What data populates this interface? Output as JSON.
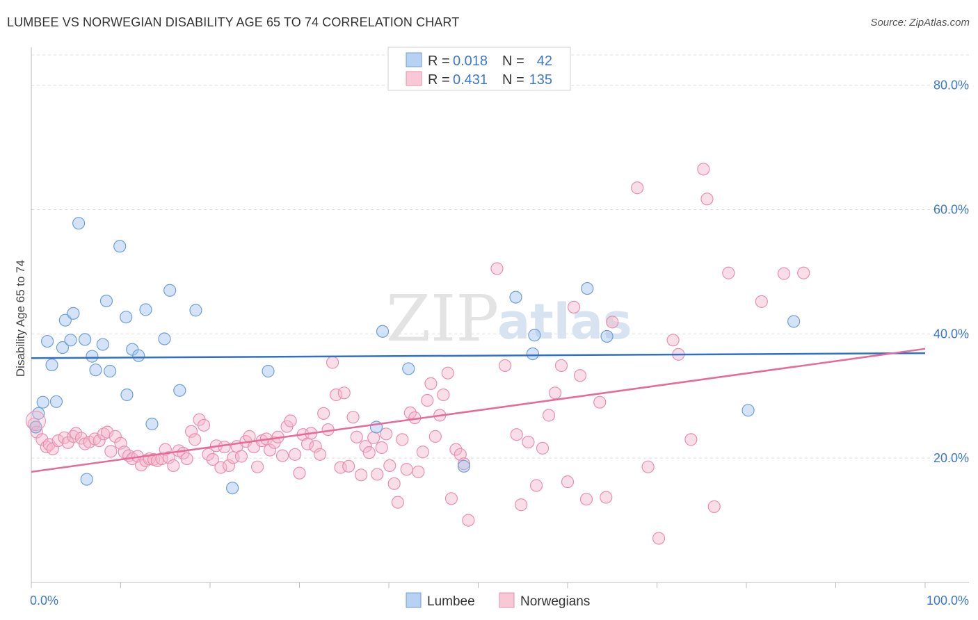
{
  "title": "LUMBEE VS NORWEGIAN DISABILITY AGE 65 TO 74 CORRELATION CHART",
  "source": "Source: ZipAtlas.com",
  "watermark": {
    "zip": "ZIP",
    "atlas": "atlas"
  },
  "chart_data": {
    "type": "scatter",
    "xlabel": "",
    "ylabel": "Disability Age 65 to 74",
    "xlim": [
      0,
      100
    ],
    "ylim": [
      0,
      85
    ],
    "x_ticks": [
      "0.0%",
      "100.0%"
    ],
    "y_ticks": [
      {
        "value": 20,
        "label": "20.0%"
      },
      {
        "value": 40,
        "label": "40.0%"
      },
      {
        "value": 60,
        "label": "60.0%"
      },
      {
        "value": 80,
        "label": "80.0%"
      }
    ],
    "grid": true,
    "legend": {
      "placement": "top-center",
      "rows": [
        {
          "r_label": "R =",
          "r_value": "0.018",
          "n_label": "N =",
          "n_value": "42"
        },
        {
          "r_label": "R =",
          "r_value": "0.431",
          "n_label": "N =",
          "n_value": "135"
        }
      ]
    },
    "series": [
      {
        "name": "Lumbee",
        "color": "#9fc2ee",
        "edge": "#6d9fd8",
        "trend_color": "#2f6fcc",
        "trend": [
          {
            "x": 0,
            "y": 36.1
          },
          {
            "x": 100,
            "y": 36.9
          }
        ],
        "points": [
          {
            "x": 0.5,
            "y": 25.0
          },
          {
            "x": 0.8,
            "y": 27.2
          },
          {
            "x": 1.3,
            "y": 29.0
          },
          {
            "x": 1.8,
            "y": 38.8
          },
          {
            "x": 2.3,
            "y": 35.0
          },
          {
            "x": 2.8,
            "y": 29.1
          },
          {
            "x": 3.5,
            "y": 37.8
          },
          {
            "x": 3.8,
            "y": 42.2
          },
          {
            "x": 4.4,
            "y": 39.0
          },
          {
            "x": 4.7,
            "y": 43.3
          },
          {
            "x": 5.3,
            "y": 57.8
          },
          {
            "x": 6.0,
            "y": 39.1
          },
          {
            "x": 6.2,
            "y": 16.6
          },
          {
            "x": 6.8,
            "y": 36.4
          },
          {
            "x": 7.2,
            "y": 34.2
          },
          {
            "x": 8.0,
            "y": 38.3
          },
          {
            "x": 8.4,
            "y": 45.3
          },
          {
            "x": 8.8,
            "y": 34.0
          },
          {
            "x": 9.9,
            "y": 54.1
          },
          {
            "x": 10.6,
            "y": 42.7
          },
          {
            "x": 10.7,
            "y": 30.2
          },
          {
            "x": 11.3,
            "y": 37.5
          },
          {
            "x": 12.0,
            "y": 36.5
          },
          {
            "x": 12.8,
            "y": 43.9
          },
          {
            "x": 13.5,
            "y": 25.5
          },
          {
            "x": 14.9,
            "y": 39.2
          },
          {
            "x": 15.5,
            "y": 47.0
          },
          {
            "x": 16.6,
            "y": 30.9
          },
          {
            "x": 18.4,
            "y": 43.8
          },
          {
            "x": 22.5,
            "y": 15.2
          },
          {
            "x": 26.5,
            "y": 34.0
          },
          {
            "x": 38.6,
            "y": 25.0
          },
          {
            "x": 39.3,
            "y": 40.4
          },
          {
            "x": 42.2,
            "y": 34.4
          },
          {
            "x": 48.4,
            "y": 18.7
          },
          {
            "x": 54.2,
            "y": 45.9
          },
          {
            "x": 56.3,
            "y": 39.8
          },
          {
            "x": 56.1,
            "y": 36.8
          },
          {
            "x": 62.2,
            "y": 47.3
          },
          {
            "x": 64.4,
            "y": 39.6
          },
          {
            "x": 80.2,
            "y": 27.7
          },
          {
            "x": 85.3,
            "y": 42.0
          }
        ]
      },
      {
        "name": "Norwegians",
        "color": "#f5b5c9",
        "edge": "#e98fad",
        "trend_color": "#e56b98",
        "trend": [
          {
            "x": 0,
            "y": 17.8
          },
          {
            "x": 100,
            "y": 37.6
          }
        ],
        "points": [
          {
            "x": 0.3,
            "y": 25.5
          },
          {
            "x": 0.6,
            "y": 24.2
          },
          {
            "x": 1.2,
            "y": 23.0
          },
          {
            "x": 1.7,
            "y": 21.8
          },
          {
            "x": 2.0,
            "y": 22.2
          },
          {
            "x": 2.4,
            "y": 21.5
          },
          {
            "x": 3.0,
            "y": 22.8
          },
          {
            "x": 3.7,
            "y": 23.3
          },
          {
            "x": 4.1,
            "y": 22.5
          },
          {
            "x": 4.7,
            "y": 23.5
          },
          {
            "x": 5.0,
            "y": 24.0
          },
          {
            "x": 5.6,
            "y": 23.2
          },
          {
            "x": 6.0,
            "y": 22.3
          },
          {
            "x": 6.5,
            "y": 22.6
          },
          {
            "x": 7.1,
            "y": 23.1
          },
          {
            "x": 7.6,
            "y": 22.8
          },
          {
            "x": 8.1,
            "y": 23.9
          },
          {
            "x": 8.5,
            "y": 24.2
          },
          {
            "x": 8.9,
            "y": 21.1
          },
          {
            "x": 9.4,
            "y": 23.5
          },
          {
            "x": 10.0,
            "y": 22.4
          },
          {
            "x": 10.4,
            "y": 21.0
          },
          {
            "x": 10.9,
            "y": 20.4
          },
          {
            "x": 11.3,
            "y": 19.9
          },
          {
            "x": 11.9,
            "y": 20.3
          },
          {
            "x": 12.3,
            "y": 18.9
          },
          {
            "x": 12.8,
            "y": 19.6
          },
          {
            "x": 13.2,
            "y": 19.9
          },
          {
            "x": 13.7,
            "y": 19.8
          },
          {
            "x": 14.1,
            "y": 19.6
          },
          {
            "x": 14.6,
            "y": 19.9
          },
          {
            "x": 15.0,
            "y": 21.4
          },
          {
            "x": 15.4,
            "y": 20.1
          },
          {
            "x": 15.9,
            "y": 18.8
          },
          {
            "x": 16.5,
            "y": 21.2
          },
          {
            "x": 17.0,
            "y": 20.8
          },
          {
            "x": 17.4,
            "y": 19.9
          },
          {
            "x": 17.9,
            "y": 24.3
          },
          {
            "x": 18.3,
            "y": 23.0
          },
          {
            "x": 18.8,
            "y": 26.2
          },
          {
            "x": 19.3,
            "y": 25.3
          },
          {
            "x": 19.8,
            "y": 20.6
          },
          {
            "x": 20.3,
            "y": 19.8
          },
          {
            "x": 20.7,
            "y": 22.0
          },
          {
            "x": 21.2,
            "y": 18.5
          },
          {
            "x": 21.6,
            "y": 21.8
          },
          {
            "x": 22.1,
            "y": 18.8
          },
          {
            "x": 22.6,
            "y": 20.1
          },
          {
            "x": 23.0,
            "y": 21.9
          },
          {
            "x": 23.5,
            "y": 20.3
          },
          {
            "x": 24.0,
            "y": 22.7
          },
          {
            "x": 24.4,
            "y": 23.5
          },
          {
            "x": 24.9,
            "y": 21.8
          },
          {
            "x": 25.3,
            "y": 18.6
          },
          {
            "x": 25.8,
            "y": 22.8
          },
          {
            "x": 26.3,
            "y": 23.1
          },
          {
            "x": 26.7,
            "y": 21.3
          },
          {
            "x": 27.2,
            "y": 22.5
          },
          {
            "x": 27.6,
            "y": 23.4
          },
          {
            "x": 28.1,
            "y": 20.4
          },
          {
            "x": 28.6,
            "y": 25.1
          },
          {
            "x": 29.0,
            "y": 26.0
          },
          {
            "x": 29.5,
            "y": 20.6
          },
          {
            "x": 30.0,
            "y": 17.6
          },
          {
            "x": 30.4,
            "y": 23.8
          },
          {
            "x": 30.9,
            "y": 22.3
          },
          {
            "x": 31.3,
            "y": 24.0
          },
          {
            "x": 31.8,
            "y": 21.9
          },
          {
            "x": 32.3,
            "y": 20.6
          },
          {
            "x": 32.7,
            "y": 27.2
          },
          {
            "x": 33.2,
            "y": 24.6
          },
          {
            "x": 33.7,
            "y": 35.4
          },
          {
            "x": 34.1,
            "y": 30.2
          },
          {
            "x": 34.6,
            "y": 18.5
          },
          {
            "x": 35.0,
            "y": 30.5
          },
          {
            "x": 35.5,
            "y": 18.7
          },
          {
            "x": 36.0,
            "y": 26.6
          },
          {
            "x": 36.4,
            "y": 23.4
          },
          {
            "x": 36.9,
            "y": 17.3
          },
          {
            "x": 37.4,
            "y": 21.9
          },
          {
            "x": 37.8,
            "y": 20.9
          },
          {
            "x": 38.3,
            "y": 23.3
          },
          {
            "x": 38.7,
            "y": 17.4
          },
          {
            "x": 39.2,
            "y": 21.7
          },
          {
            "x": 39.7,
            "y": 23.9
          },
          {
            "x": 40.1,
            "y": 18.8
          },
          {
            "x": 40.6,
            "y": 15.9
          },
          {
            "x": 41.0,
            "y": 12.9
          },
          {
            "x": 41.5,
            "y": 23.0
          },
          {
            "x": 42.0,
            "y": 18.2
          },
          {
            "x": 42.4,
            "y": 27.3
          },
          {
            "x": 42.9,
            "y": 26.5
          },
          {
            "x": 43.3,
            "y": 17.8
          },
          {
            "x": 43.8,
            "y": 21.0
          },
          {
            "x": 44.3,
            "y": 29.3
          },
          {
            "x": 44.7,
            "y": 32.0
          },
          {
            "x": 45.2,
            "y": 23.5
          },
          {
            "x": 45.7,
            "y": 26.9
          },
          {
            "x": 46.1,
            "y": 30.2
          },
          {
            "x": 46.6,
            "y": 33.7
          },
          {
            "x": 47.0,
            "y": 13.5
          },
          {
            "x": 47.5,
            "y": 21.4
          },
          {
            "x": 48.0,
            "y": 20.6
          },
          {
            "x": 48.4,
            "y": 19.1
          },
          {
            "x": 48.9,
            "y": 10.0
          },
          {
            "x": 52.1,
            "y": 50.5
          },
          {
            "x": 53.0,
            "y": 34.9
          },
          {
            "x": 54.3,
            "y": 23.8
          },
          {
            "x": 54.8,
            "y": 12.5
          },
          {
            "x": 55.6,
            "y": 22.6
          },
          {
            "x": 56.5,
            "y": 15.6
          },
          {
            "x": 57.2,
            "y": 21.6
          },
          {
            "x": 57.9,
            "y": 26.9
          },
          {
            "x": 58.6,
            "y": 30.5
          },
          {
            "x": 59.3,
            "y": 34.9
          },
          {
            "x": 60.0,
            "y": 16.2
          },
          {
            "x": 60.7,
            "y": 44.3
          },
          {
            "x": 61.4,
            "y": 33.3
          },
          {
            "x": 62.1,
            "y": 13.4
          },
          {
            "x": 63.6,
            "y": 29.0
          },
          {
            "x": 64.3,
            "y": 13.7
          },
          {
            "x": 65.0,
            "y": 41.9
          },
          {
            "x": 67.8,
            "y": 63.5
          },
          {
            "x": 69.0,
            "y": 18.6
          },
          {
            "x": 70.2,
            "y": 7.1
          },
          {
            "x": 71.8,
            "y": 39.0
          },
          {
            "x": 72.4,
            "y": 36.7
          },
          {
            "x": 73.8,
            "y": 23.0
          },
          {
            "x": 75.2,
            "y": 66.5
          },
          {
            "x": 75.6,
            "y": 61.7
          },
          {
            "x": 76.4,
            "y": 12.2
          },
          {
            "x": 78.0,
            "y": 49.8
          },
          {
            "x": 81.7,
            "y": 45.2
          },
          {
            "x": 84.2,
            "y": 49.7
          },
          {
            "x": 86.4,
            "y": 49.8
          }
        ]
      }
    ]
  }
}
